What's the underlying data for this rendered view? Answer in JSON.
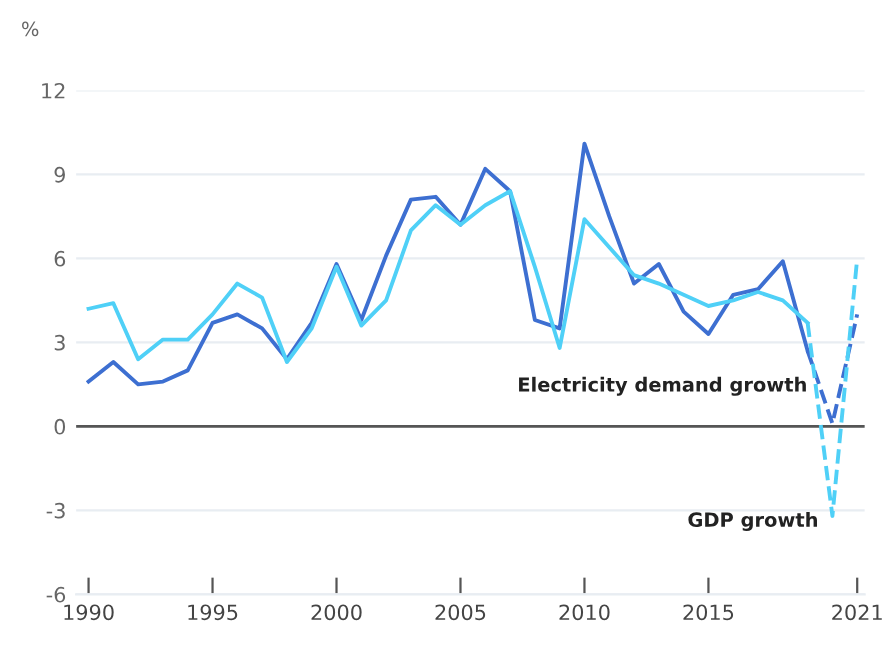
{
  "chart_data": {
    "type": "line",
    "ylabel": "%",
    "x": [
      1990,
      1991,
      1992,
      1993,
      1994,
      1995,
      1996,
      1997,
      1998,
      1999,
      2000,
      2001,
      2002,
      2003,
      2004,
      2005,
      2006,
      2007,
      2008,
      2009,
      2010,
      2011,
      2012,
      2013,
      2014,
      2015,
      2016,
      2017,
      2018,
      2019
    ],
    "series": [
      {
        "color": "#3d6fd1",
        "line_style": "solid",
        "values": [
          1.6,
          2.3,
          1.5,
          1.6,
          2.0,
          3.7,
          4.0,
          3.5,
          2.4,
          3.7,
          5.8,
          3.8,
          6.1,
          8.1,
          8.2,
          7.2,
          9.2,
          8.4,
          3.8,
          3.5,
          10.1,
          7.5,
          5.1,
          5.8,
          4.1,
          3.3,
          4.7,
          4.9,
          5.9,
          2.7
        ]
      },
      {
        "color": "#4fd0f7",
        "line_style": "solid",
        "values": [
          4.2,
          4.4,
          2.4,
          3.1,
          3.1,
          4.0,
          5.1,
          4.6,
          2.3,
          3.5,
          5.7,
          3.6,
          4.5,
          7.0,
          7.9,
          7.2,
          7.9,
          8.4,
          5.7,
          2.8,
          7.4,
          6.4,
          5.4,
          5.1,
          4.7,
          4.3,
          4.5,
          4.8,
          4.5,
          3.7
        ]
      },
      {
        "name": "Electricity demand growth",
        "color": "#3d6fd1",
        "line_style": "dashed",
        "x": [
          2019,
          2020,
          2021
        ],
        "values": [
          2.7,
          0.1,
          4.0
        ]
      },
      {
        "name": "GDP growth",
        "color": "#4fd0f7",
        "line_style": "dashed",
        "x": [
          2019,
          2020,
          2021
        ],
        "values": [
          3.7,
          -3.2,
          6.0
        ]
      }
    ],
    "xlim": [
      1989.5,
      2021.3
    ],
    "xticks": [
      1990,
      1995,
      2000,
      2005,
      2010,
      2015,
      2021
    ],
    "ylim": [
      -6,
      12
    ],
    "yticks": [
      -6,
      -3,
      0,
      3,
      6,
      9,
      12
    ],
    "ref_lines": [
      {
        "axis": "y",
        "value": 0,
        "color": "#555555"
      }
    ],
    "grid": "y",
    "legend": false
  }
}
